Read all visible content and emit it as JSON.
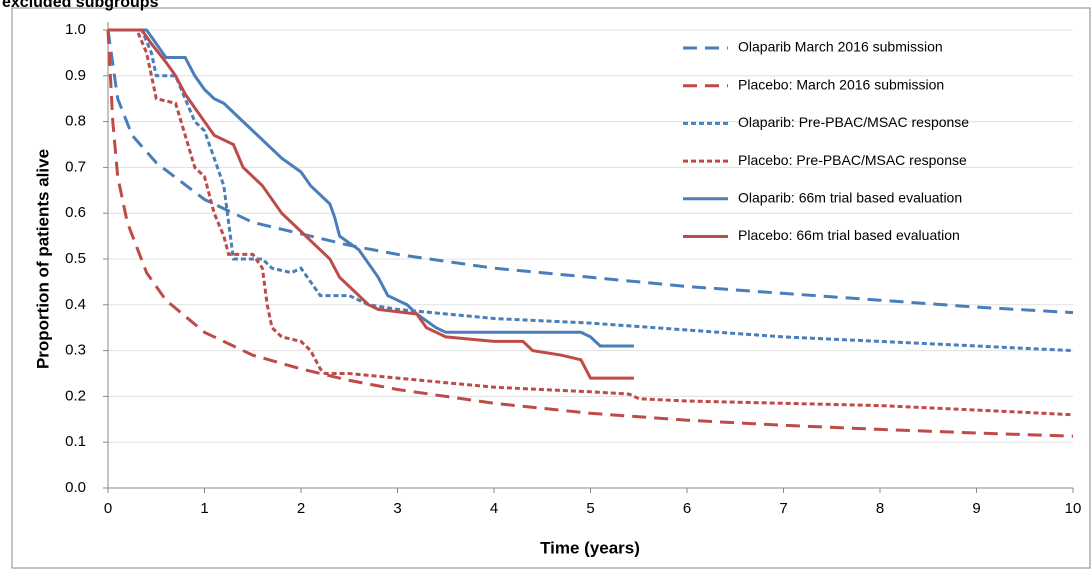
{
  "chart_data": {
    "type": "line",
    "title": "excluded subgroups",
    "x_label": "Time (years)",
    "y_label": "Proportion of patients alive",
    "xlim": [
      0,
      10
    ],
    "xticks": [
      0,
      1,
      2,
      3,
      4,
      5,
      6,
      7,
      8,
      9,
      10
    ],
    "ylim": [
      0,
      1
    ],
    "yticks": [
      {
        "value": 0,
        "label": "0.0"
      },
      0.1,
      0.2,
      0.3,
      0.4,
      0.5,
      0.6,
      0.7,
      0.8,
      0.9,
      {
        "value": 1,
        "label": "1.0"
      }
    ],
    "grid": true,
    "legend": "upper right",
    "series": [
      {
        "name": "Olaparib March 2016 submission",
        "color": "#4a7ebb",
        "line_style": "long-dash",
        "x": [
          0,
          0.1,
          0.25,
          0.5,
          1,
          1.5,
          2,
          2.5,
          3,
          4,
          5,
          6,
          7,
          8,
          9,
          10
        ],
        "values": [
          1.0,
          0.85,
          0.77,
          0.71,
          0.63,
          0.58,
          0.555,
          0.53,
          0.51,
          0.48,
          0.46,
          0.44,
          0.425,
          0.41,
          0.395,
          0.383
        ]
      },
      {
        "name": "Placebo: March 2016 submission",
        "color": "#be4b48",
        "line_style": "long-dash",
        "x": [
          0,
          0.05,
          0.1,
          0.2,
          0.4,
          0.6,
          1,
          1.5,
          2,
          2.5,
          3,
          4,
          5,
          6,
          7,
          8,
          9,
          10
        ],
        "values": [
          1.0,
          0.8,
          0.68,
          0.58,
          0.47,
          0.41,
          0.34,
          0.29,
          0.26,
          0.235,
          0.215,
          0.185,
          0.163,
          0.148,
          0.137,
          0.128,
          0.12,
          0.113
        ]
      },
      {
        "name": "Olaparib: Pre-PBAC/MSAC response",
        "color": "#4a7ebb",
        "line_style": "short-dash",
        "x": [
          0,
          0.35,
          0.45,
          0.5,
          0.7,
          0.8,
          0.9,
          1.0,
          1.1,
          1.2,
          1.3,
          1.6,
          1.7,
          1.9,
          2.0,
          2.1,
          2.2,
          2.5,
          2.7,
          3,
          4,
          5,
          6,
          7,
          8,
          9,
          10
        ],
        "values": [
          1.0,
          1.0,
          0.95,
          0.9,
          0.9,
          0.85,
          0.8,
          0.78,
          0.72,
          0.66,
          0.5,
          0.5,
          0.48,
          0.47,
          0.48,
          0.45,
          0.42,
          0.42,
          0.4,
          0.39,
          0.37,
          0.36,
          0.345,
          0.33,
          0.32,
          0.31,
          0.3
        ]
      },
      {
        "name": "Placebo: Pre-PBAC/MSAC response",
        "color": "#be4b48",
        "line_style": "short-dash",
        "x": [
          0,
          0.3,
          0.4,
          0.5,
          0.7,
          0.8,
          0.9,
          1,
          1.1,
          1.2,
          1.25,
          1.5,
          1.6,
          1.65,
          1.7,
          1.8,
          2.0,
          2.1,
          2.2,
          2.25,
          2.5,
          3,
          3.5,
          4,
          5,
          5.4,
          5.5,
          6,
          7,
          8,
          9,
          10
        ],
        "values": [
          1.0,
          1.0,
          0.95,
          0.85,
          0.84,
          0.77,
          0.7,
          0.68,
          0.6,
          0.55,
          0.51,
          0.51,
          0.48,
          0.4,
          0.35,
          0.33,
          0.32,
          0.3,
          0.26,
          0.25,
          0.25,
          0.24,
          0.23,
          0.22,
          0.21,
          0.205,
          0.195,
          0.19,
          0.185,
          0.18,
          0.17,
          0.16
        ]
      },
      {
        "name": "Olaparib: 66m trial based evaluation",
        "color": "#4a7ebb",
        "line_style": "solid",
        "x": [
          0,
          0.4,
          0.5,
          0.6,
          0.8,
          0.9,
          1,
          1.1,
          1.2,
          1.4,
          1.6,
          1.8,
          2,
          2.1,
          2.2,
          2.3,
          2.35,
          2.4,
          2.6,
          2.8,
          2.9,
          3.0,
          3.1,
          3.2,
          3.4,
          3.5,
          4,
          4.5,
          4.9,
          5.0,
          5.1,
          5.45
        ],
        "values": [
          1.0,
          1.0,
          0.97,
          0.94,
          0.94,
          0.9,
          0.87,
          0.85,
          0.84,
          0.8,
          0.76,
          0.72,
          0.69,
          0.66,
          0.64,
          0.62,
          0.59,
          0.55,
          0.52,
          0.46,
          0.42,
          0.41,
          0.4,
          0.38,
          0.35,
          0.34,
          0.34,
          0.34,
          0.34,
          0.33,
          0.31,
          0.31
        ]
      },
      {
        "name": "Placebo: 66m trial based evaluation",
        "color": "#be4b48",
        "line_style": "solid",
        "x": [
          0,
          0.35,
          0.45,
          0.6,
          0.7,
          0.8,
          0.9,
          1,
          1.1,
          1.3,
          1.4,
          1.6,
          1.8,
          2,
          2.1,
          2.3,
          2.4,
          2.5,
          2.7,
          2.8,
          3,
          3.2,
          3.3,
          3.5,
          4,
          4.3,
          4.4,
          4.7,
          4.9,
          5,
          5.45
        ],
        "values": [
          1.0,
          1.0,
          0.97,
          0.93,
          0.9,
          0.86,
          0.83,
          0.8,
          0.77,
          0.75,
          0.7,
          0.66,
          0.6,
          0.56,
          0.54,
          0.5,
          0.46,
          0.44,
          0.4,
          0.39,
          0.385,
          0.38,
          0.35,
          0.33,
          0.32,
          0.32,
          0.3,
          0.29,
          0.28,
          0.24,
          0.24
        ]
      }
    ]
  }
}
